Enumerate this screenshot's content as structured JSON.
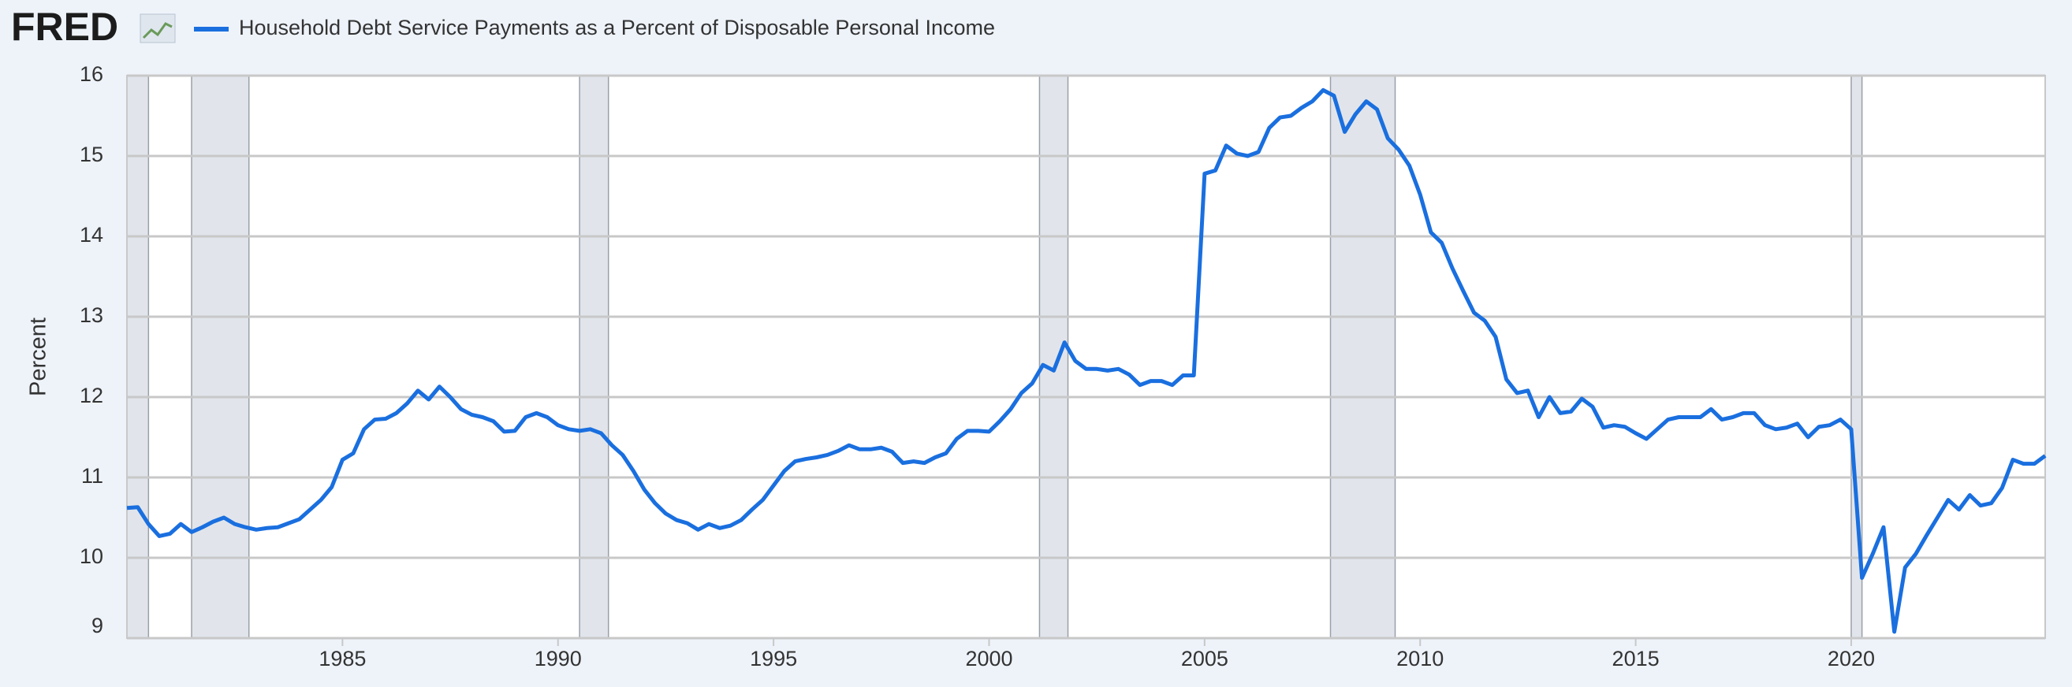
{
  "logo": "FRED",
  "chart_data": {
    "type": "line",
    "title": "Household Debt Service Payments as a Percent of Disposable Personal Income",
    "y_label": "Percent",
    "x": [
      1980,
      1980.25,
      1980.5,
      1980.75,
      1981,
      1981.25,
      1981.5,
      1981.75,
      1982,
      1982.25,
      1982.5,
      1982.75,
      1983,
      1983.25,
      1983.5,
      1983.75,
      1984,
      1984.25,
      1984.5,
      1984.75,
      1985,
      1985.25,
      1985.5,
      1985.75,
      1986,
      1986.25,
      1986.5,
      1986.75,
      1987,
      1987.25,
      1987.5,
      1987.75,
      1988,
      1988.25,
      1988.5,
      1988.75,
      1989,
      1989.25,
      1989.5,
      1989.75,
      1990,
      1990.25,
      1990.5,
      1990.75,
      1991,
      1991.25,
      1991.5,
      1991.75,
      1992,
      1992.25,
      1992.5,
      1992.75,
      1993,
      1993.25,
      1993.5,
      1993.75,
      1994,
      1994.25,
      1994.5,
      1994.75,
      1995,
      1995.25,
      1995.5,
      1995.75,
      1996,
      1996.25,
      1996.5,
      1996.75,
      1997,
      1997.25,
      1997.5,
      1997.75,
      1998,
      1998.25,
      1998.5,
      1998.75,
      1999,
      1999.25,
      1999.5,
      1999.75,
      2000,
      2000.25,
      2000.5,
      2000.75,
      2001,
      2001.25,
      2001.5,
      2001.75,
      2002,
      2002.25,
      2002.5,
      2002.75,
      2003,
      2003.25,
      2003.5,
      2003.75,
      2004,
      2004.25,
      2004.5,
      2004.75,
      2005,
      2005.25,
      2005.5,
      2005.75,
      2006,
      2006.25,
      2006.5,
      2006.75,
      2007,
      2007.25,
      2007.5,
      2007.75,
      2008,
      2008.25,
      2008.5,
      2008.75,
      2009,
      2009.25,
      2009.5,
      2009.75,
      2010,
      2010.25,
      2010.5,
      2010.75,
      2011,
      2011.25,
      2011.5,
      2011.75,
      2012,
      2012.25,
      2012.5,
      2012.75,
      2013,
      2013.25,
      2013.5,
      2013.75,
      2014,
      2014.25,
      2014.5,
      2014.75,
      2015,
      2015.25,
      2015.5,
      2015.75,
      2016,
      2016.25,
      2016.5,
      2016.75,
      2017,
      2017.25,
      2017.5,
      2017.75,
      2018,
      2018.25,
      2018.5,
      2018.75,
      2019,
      2019.25,
      2019.5,
      2019.75,
      2020,
      2020.25,
      2020.5,
      2020.75,
      2021,
      2021.25,
      2021.5,
      2021.75,
      2022,
      2022.25,
      2022.5,
      2022.75,
      2023,
      2023.25,
      2023.5,
      2023.75,
      2024,
      2024.25,
      2024.5
    ],
    "series": [
      {
        "name": "Household Debt Service Payments as a Percent of Disposable Personal Income",
        "color": "#1a6fdf",
        "values": [
          10.62,
          10.63,
          10.42,
          10.27,
          10.3,
          10.42,
          10.32,
          10.38,
          10.45,
          10.5,
          10.42,
          10.38,
          10.35,
          10.37,
          10.38,
          10.43,
          10.48,
          10.6,
          10.72,
          10.88,
          11.22,
          11.3,
          11.6,
          11.72,
          11.73,
          11.8,
          11.92,
          12.08,
          11.97,
          12.13,
          12.0,
          11.85,
          11.78,
          11.75,
          11.7,
          11.57,
          11.58,
          11.75,
          11.8,
          11.75,
          11.65,
          11.6,
          11.58,
          11.6,
          11.55,
          11.4,
          11.28,
          11.08,
          10.85,
          10.68,
          10.55,
          10.47,
          10.43,
          10.35,
          10.42,
          10.37,
          10.4,
          10.47,
          10.6,
          10.72,
          10.9,
          11.08,
          11.2,
          11.23,
          11.25,
          11.28,
          11.33,
          11.4,
          11.35,
          11.35,
          11.37,
          11.32,
          11.18,
          11.2,
          11.18,
          11.25,
          11.3,
          11.48,
          11.58,
          11.58,
          11.57,
          11.7,
          11.85,
          12.05,
          12.17,
          12.4,
          12.33,
          12.68,
          12.45,
          12.35,
          12.35,
          12.33,
          12.35,
          12.28,
          12.15,
          12.2,
          12.2,
          12.15,
          12.27,
          12.27,
          14.78,
          14.82,
          15.13,
          15.03,
          15.0,
          15.05,
          15.35,
          15.48,
          15.5,
          15.6,
          15.68,
          15.82,
          15.75,
          15.3,
          15.52,
          15.68,
          15.58,
          15.22,
          15.08,
          14.88,
          14.52,
          14.05,
          13.92,
          13.6,
          13.32,
          13.05,
          12.95,
          12.75,
          12.22,
          12.05,
          12.08,
          11.75,
          12.0,
          11.8,
          11.82,
          11.98,
          11.88,
          11.62,
          11.65,
          11.63,
          11.55,
          11.48,
          11.6,
          11.72,
          11.75,
          11.75,
          11.75,
          11.85,
          11.72,
          11.75,
          11.8,
          11.8,
          11.65,
          11.6,
          11.62,
          11.67,
          11.5,
          11.63,
          11.65,
          11.72,
          11.6,
          9.75,
          10.05,
          10.38,
          9.08,
          9.88,
          10.05,
          10.28,
          10.5,
          10.72,
          10.6,
          10.78,
          10.65,
          10.68,
          10.87,
          11.22,
          11.17,
          11.17,
          11.27
        ]
      }
    ],
    "recessions": [
      [
        1980,
        1980.5
      ],
      [
        1981.5,
        1982.83
      ],
      [
        1990.5,
        1991.17
      ],
      [
        2001.17,
        2001.83
      ],
      [
        2007.92,
        2009.42
      ],
      [
        2020,
        2020.25
      ]
    ],
    "xlim": [
      1980,
      2024.5
    ],
    "xticks": [
      1985,
      1990,
      1995,
      2000,
      2005,
      2010,
      2015,
      2020
    ],
    "ylim": [
      9,
      16
    ],
    "yticks": [
      9,
      10,
      11,
      12,
      13,
      14,
      15,
      16
    ],
    "grid": true
  }
}
